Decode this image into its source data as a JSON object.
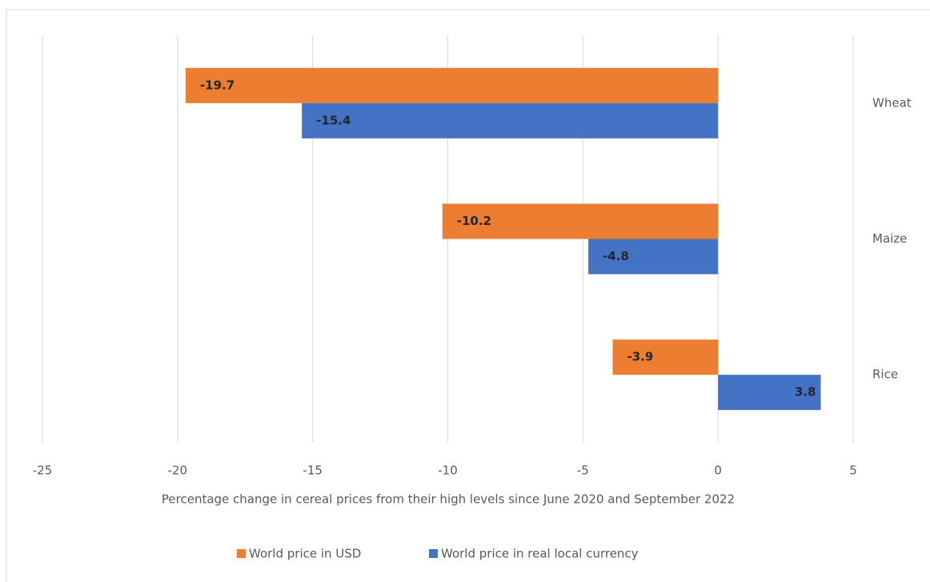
{
  "chart_data": {
    "type": "bar",
    "orientation": "horizontal",
    "categories": [
      "Wheat",
      "Maize",
      "Rice"
    ],
    "series": [
      {
        "name": "World price in USD",
        "color": "#ed7d31",
        "values": [
          -19.7,
          -10.2,
          -3.9
        ]
      },
      {
        "name": "World price in real local currency",
        "color": "#4472c4",
        "values": [
          -15.4,
          -4.8,
          3.8
        ]
      }
    ],
    "xlabel": "Percentage change in cereal prices from their high levels since June 2020 and September 2022",
    "xlim": [
      -25,
      5
    ],
    "xticks": [
      -25,
      -20,
      -15,
      -10,
      -5,
      0,
      5
    ],
    "grid": true,
    "legend": "bottom"
  }
}
